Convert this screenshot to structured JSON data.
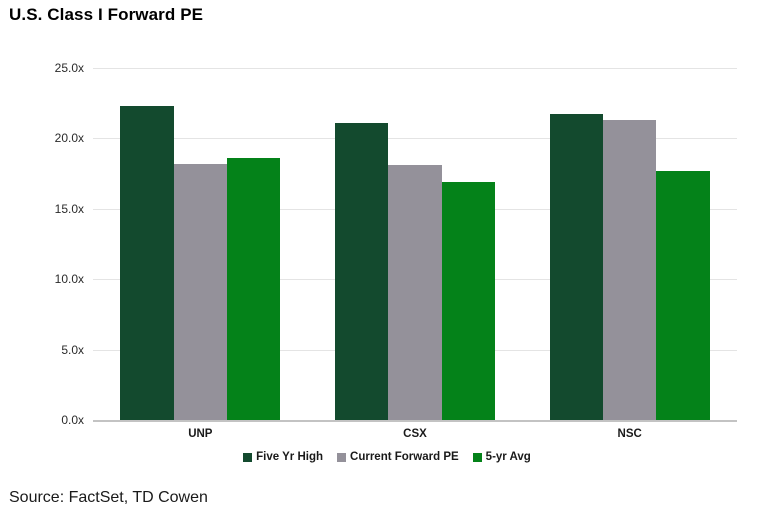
{
  "page": {
    "title": "U.S. Class I Forward PE",
    "source": "Source: FactSet, TD Cowen"
  },
  "chart_data": {
    "type": "bar",
    "title": "U.S. Class I Forward PE",
    "categories": [
      "UNP",
      "CSX",
      "NSC"
    ],
    "series": [
      {
        "name": "Five Yr High",
        "color": "#134a2e",
        "values": [
          22.3,
          21.1,
          21.7
        ]
      },
      {
        "name": "Current Forward PE",
        "color": "#94919a",
        "values": [
          18.2,
          18.1,
          21.3
        ]
      },
      {
        "name": "5-yr Avg",
        "color": "#048219",
        "values": [
          18.6,
          16.9,
          17.7
        ]
      }
    ],
    "ylim": [
      0,
      25
    ],
    "ytick_step": 5,
    "yticks": [
      {
        "value": 0,
        "label": "0.0x"
      },
      {
        "value": 5,
        "label": "5.0x"
      },
      {
        "value": 10,
        "label": "10.0x"
      },
      {
        "value": 15,
        "label": "15.0x"
      },
      {
        "value": 20,
        "label": "20.0x"
      },
      {
        "value": 25,
        "label": "25.0x"
      }
    ],
    "grid": true,
    "legend_position": "bottom",
    "axis_colors": {
      "gridline": "#e4e4e4",
      "baseline": "#c3c3c3"
    }
  }
}
